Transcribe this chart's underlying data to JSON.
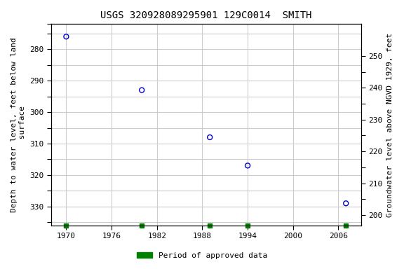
{
  "title": "USGS 320928089295901 129C0014  SMITH",
  "ylabel_left": "Depth to water level, feet below land\n surface",
  "ylabel_right": "Groundwater level above NGVD 1929, feet",
  "data_x": [
    1970,
    1980,
    1989,
    1994,
    2007
  ],
  "data_y_left": [
    276,
    293,
    308,
    317,
    329
  ],
  "xlim": [
    1968,
    2009
  ],
  "ylim_left": [
    336,
    272
  ],
  "ylim_right": [
    196.8,
    260
  ],
  "xticks": [
    1970,
    1976,
    1982,
    1988,
    1994,
    2000,
    2006
  ],
  "yticks_left": [
    272,
    275,
    280,
    285,
    290,
    295,
    300,
    305,
    310,
    315,
    320,
    325,
    330,
    335
  ],
  "yticks_left_labels": [
    "",
    "",
    "280",
    "",
    "290",
    "",
    "300",
    "",
    "310",
    "",
    "320",
    "",
    "330",
    ""
  ],
  "yticks_right": [
    200,
    205,
    210,
    215,
    220,
    225,
    230,
    235,
    240,
    245,
    250
  ],
  "yticks_right_labels": [
    "200",
    "",
    "210",
    "",
    "220",
    "",
    "230",
    "",
    "240",
    "",
    "250"
  ],
  "grid_color": "#cccccc",
  "background_color": "#ffffff",
  "point_color": "#0000cc",
  "legend_color": "#008000",
  "legend_label": "Period of approved data",
  "title_fontsize": 10,
  "label_fontsize": 8,
  "tick_fontsize": 8,
  "approved_data_x": [
    1970,
    1980,
    1989,
    1994,
    2007
  ]
}
